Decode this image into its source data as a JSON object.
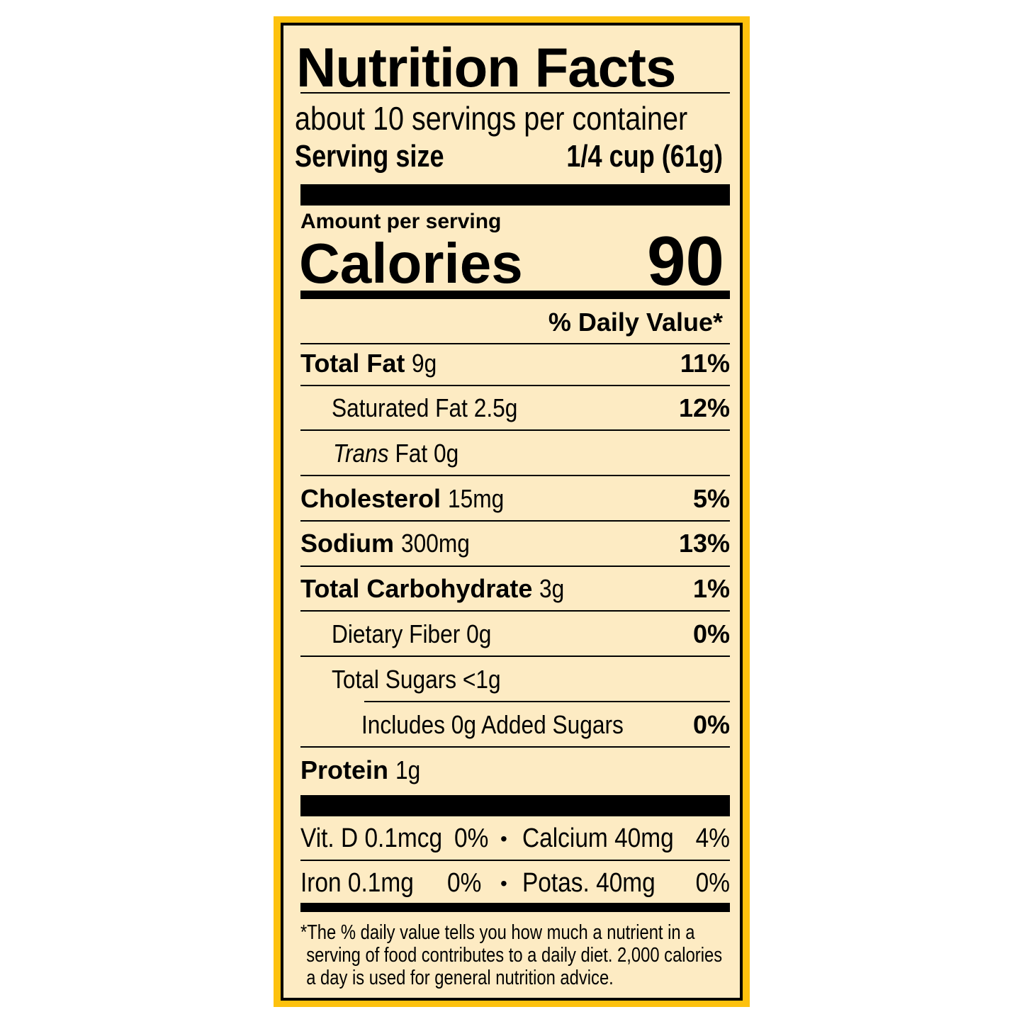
{
  "label": {
    "title": "Nutrition Facts",
    "servings_per_container": "about 10 servings per container",
    "serving_size_label": "Serving size",
    "serving_size_value": "1/4 cup (61g)",
    "amount_per_serving": "Amount per serving",
    "calories_label": "Calories",
    "calories_value": "90",
    "daily_value_header": "% Daily Value*",
    "nutrients": [
      {
        "name": "Total Fat",
        "amount": "9g",
        "dv": "11%"
      },
      {
        "name": "Saturated Fat 2.5g",
        "amount": "",
        "dv": "12%"
      },
      {
        "name_italic": "Trans",
        "name": " Fat 0g",
        "amount": "",
        "dv": ""
      },
      {
        "name": "Cholesterol",
        "amount": "15mg",
        "dv": "5%"
      },
      {
        "name": "Sodium",
        "amount": "300mg",
        "dv": "13%"
      },
      {
        "name": "Total Carbohydrate",
        "amount": "3g",
        "dv": "1%"
      },
      {
        "name": "Dietary Fiber 0g",
        "amount": "",
        "dv": "0%"
      },
      {
        "name": "Total Sugars <1g",
        "amount": "",
        "dv": ""
      },
      {
        "name": "Includes 0g Added Sugars",
        "amount": "",
        "dv": "0%"
      },
      {
        "name": "Protein",
        "amount": "1g",
        "dv": ""
      }
    ],
    "micronutrients": [
      {
        "a": "Vit. D 0.1mcg",
        "a_dv": "0%",
        "sep": "•",
        "b": "Calcium 40mg",
        "b_dv": "4%"
      },
      {
        "a": "Iron 0.1mg",
        "a_dv": "0%",
        "sep": "•",
        "b": "Potas. 40mg",
        "b_dv": "0%"
      }
    ],
    "footnote": [
      "*The % daily value tells you how much a nutrient in a",
      "serving of food contributes to a daily diet. 2,000 calories",
      "a day is used for general nutrition advice."
    ]
  },
  "colors": {
    "border_outer": "#FDC10E",
    "background": "#FDEBC3",
    "ink": "#000000"
  }
}
